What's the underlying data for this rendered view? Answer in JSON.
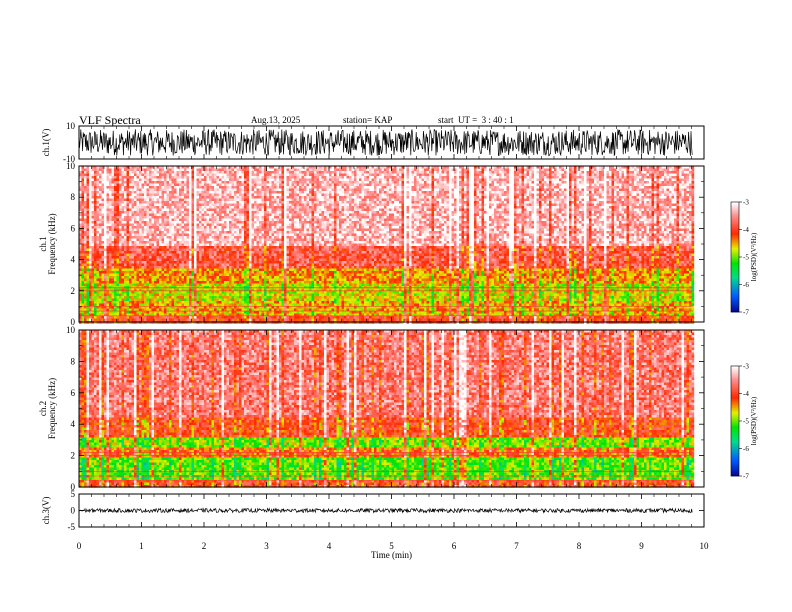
{
  "header": {
    "title": "VLF Spectra",
    "date": "Aug.13, 2025",
    "station": "station= KAP",
    "start_ut": "start  UT =  3 : 40 : 1"
  },
  "chart_data": [
    {
      "type": "line",
      "panel": "ch1-waveform",
      "ylabel": "ch.1(V)",
      "ylim": [
        -10,
        10
      ],
      "y_tick_labels": [
        "10",
        "-10"
      ],
      "signal_range": [
        -8,
        8
      ],
      "x_range": [
        0,
        9.82
      ]
    },
    {
      "type": "heatmap",
      "panel": "ch1-spectrogram",
      "ylabel_top": "ch.1",
      "ylabel": "Frequency (kHz)",
      "ylim": [
        0,
        10
      ],
      "y_ticks": [
        0,
        2,
        4,
        6,
        8,
        10
      ],
      "x_range": [
        0,
        9.82
      ],
      "colorbar": {
        "label": "log(PSD)(V²/Hz)",
        "range": [
          -7,
          -3
        ],
        "ticks": [
          -3,
          -4,
          -5,
          -6,
          -7
        ]
      },
      "band_profile_khz": [
        {
          "band": [
            0,
            0.5
          ],
          "log_psd": -4.0
        },
        {
          "band": [
            0.5,
            1.5
          ],
          "log_psd": -4.5
        },
        {
          "band": [
            1.5,
            2.5
          ],
          "log_psd": -4.7
        },
        {
          "band": [
            2.5,
            3.5
          ],
          "log_psd": -4.4
        },
        {
          "band": [
            3.5,
            5.0
          ],
          "log_psd": -3.8
        },
        {
          "band": [
            5.0,
            10.0
          ],
          "log_psd": -3.3
        }
      ]
    },
    {
      "type": "heatmap",
      "panel": "ch2-spectrogram",
      "ylabel_top": "ch.2",
      "ylabel": "Frequency (kHz)",
      "ylim": [
        0,
        10
      ],
      "y_ticks": [
        0,
        2,
        4,
        6,
        8,
        10
      ],
      "x_range": [
        0,
        9.82
      ],
      "colorbar": {
        "label": "log(PSD)(V²/Hz)",
        "range": [
          -7,
          -3
        ],
        "ticks": [
          -3,
          -4,
          -5,
          -6,
          -7
        ]
      },
      "band_profile_khz": [
        {
          "band": [
            0,
            0.5
          ],
          "log_psd": -4.0
        },
        {
          "band": [
            0.5,
            2.0
          ],
          "log_psd": -5.0
        },
        {
          "band": [
            2.0,
            2.6
          ],
          "log_psd": -4.2
        },
        {
          "band": [
            2.6,
            3.2
          ],
          "log_psd": -4.9
        },
        {
          "band": [
            3.2,
            4.5
          ],
          "log_psd": -4.0
        },
        {
          "band": [
            4.5,
            10.0
          ],
          "log_psd": -3.6
        }
      ]
    },
    {
      "type": "line",
      "panel": "ch3-waveform",
      "ylabel": "ch.3(V)",
      "ylim": [
        -5,
        5
      ],
      "y_tick_labels": [
        "5",
        "0",
        "-5"
      ],
      "signal_range": [
        -0.6,
        0.6
      ],
      "x_range": [
        0,
        9.82
      ]
    }
  ],
  "x_axis": {
    "label": "Time (min)",
    "ticks": [
      0,
      1,
      2,
      3,
      4,
      5,
      6,
      7,
      8,
      9,
      10
    ]
  }
}
